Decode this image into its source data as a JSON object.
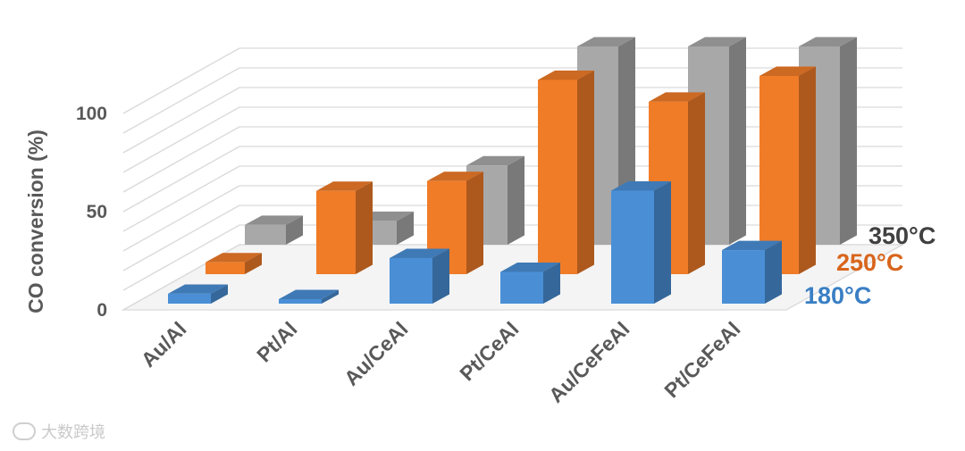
{
  "chart_data": {
    "type": "bar",
    "subtype": "3d-column",
    "title": "",
    "ylabel": "CO conversion (%)",
    "xlabel": "",
    "ylim": [
      0,
      100
    ],
    "yticks": [
      "0",
      "50",
      "100"
    ],
    "categories": [
      "Au/Al",
      "Pt/Al",
      "Au/CeAl",
      "Pt/CeAl",
      "Au/CeFeAl",
      "Pt/CeFeAl"
    ],
    "series": [
      {
        "name": "180°C",
        "color": "#4a8fd6",
        "values": [
          5,
          0,
          23,
          16,
          57,
          27
        ]
      },
      {
        "name": "250°C",
        "color": "#f07c28",
        "values": [
          6,
          42,
          47,
          98,
          87,
          100
        ]
      },
      {
        "name": "350°C",
        "color": "#a8a8a8",
        "values": [
          10,
          12,
          40,
          100,
          100,
          100
        ]
      }
    ],
    "grid": true,
    "legend": "series names at the right end of each row"
  },
  "watermark": {
    "text": "大数跨境"
  }
}
